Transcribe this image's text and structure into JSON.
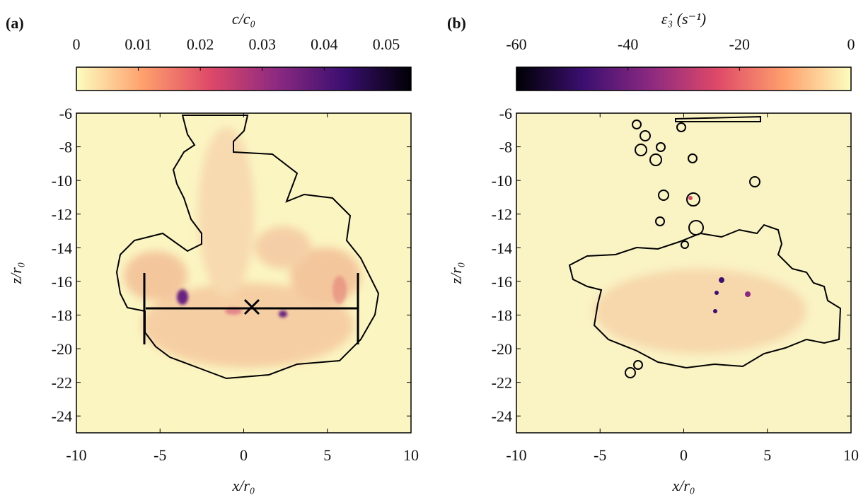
{
  "chart_data": [
    {
      "type": "heatmap",
      "panel_label": "(a)",
      "colorbar_label": "c/c₀",
      "colorbar_lim": [
        0,
        0.054
      ],
      "colorbar_ticks": [
        0,
        0.01,
        0.02,
        0.03,
        0.04,
        0.05
      ],
      "colorbar_colors": [
        "#fcfdbf",
        "#fe9f6d",
        "#de4968",
        "#8c2981",
        "#3b0f70",
        "#000004"
      ],
      "xlabel": "x/r₀",
      "ylabel": "z/r₀",
      "xlim": [
        -10,
        10
      ],
      "xticks": [
        -10,
        -5,
        0,
        5,
        10
      ],
      "ylim": [
        -25,
        -6
      ],
      "yticks": [
        -24,
        -22,
        -20,
        -18,
        -16,
        -14,
        -12,
        -10,
        -8,
        -6
      ]
    },
    {
      "type": "heatmap",
      "panel_label": "(b)",
      "colorbar_label": "ε̇₃ (s⁻¹)",
      "colorbar_lim": [
        -60,
        0
      ],
      "colorbar_ticks": [
        -60,
        -40,
        -20,
        0
      ],
      "colorbar_colors": [
        "#000004",
        "#3b0f70",
        "#8c2981",
        "#de4968",
        "#fe9f6d",
        "#fcfdbf"
      ],
      "xlabel": "x/r₀",
      "ylabel": "z/r₀",
      "xlim": [
        -10,
        10
      ],
      "xticks": [
        -10,
        -5,
        0,
        5,
        10
      ],
      "ylim": [
        -25,
        -6
      ],
      "yticks": [
        -24,
        -22,
        -20,
        -18,
        -16,
        -14,
        -12,
        -10,
        -8,
        -6
      ]
    }
  ]
}
